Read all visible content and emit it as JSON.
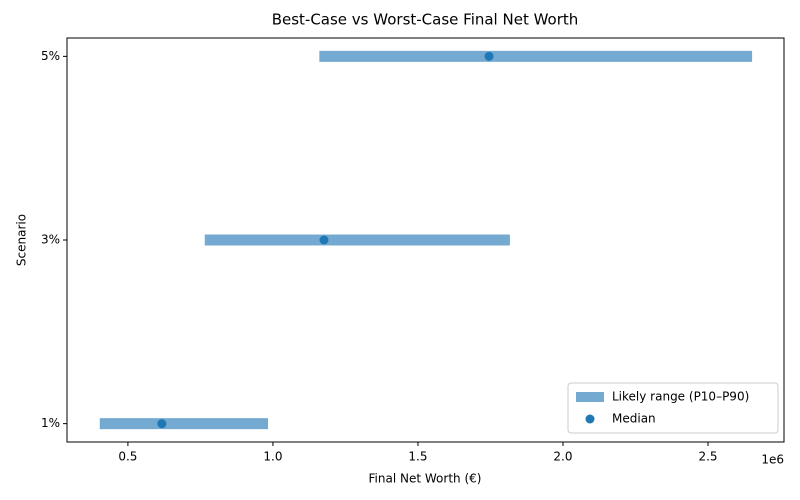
{
  "chart_data": {
    "type": "range",
    "title": "Best-Case vs Worst-Case Final Net Worth",
    "x_label": "Final Net Worth (€)",
    "y_label": "Scenario",
    "x_offset_label": "1e6",
    "categories": [
      "1%",
      "3%",
      "5%"
    ],
    "series": [
      {
        "name": "Likely range (P10–P90)",
        "color": "#74aad2",
        "low": [
          0.403,
          0.765,
          1.16
        ],
        "high": [
          0.983,
          1.817,
          2.652
        ]
      },
      {
        "name": "Median",
        "color": "#1f77b4",
        "values": [
          0.617,
          1.176,
          1.745
        ]
      }
    ],
    "xlim": [
      0.29,
      2.762
    ],
    "xticks": [
      0.5,
      {
        "value": 1.0,
        "label": "1.0"
      },
      1.5,
      {
        "value": 2.0,
        "label": "2.0"
      },
      2.5
    ],
    "grid": false,
    "legend": "lower-right"
  }
}
